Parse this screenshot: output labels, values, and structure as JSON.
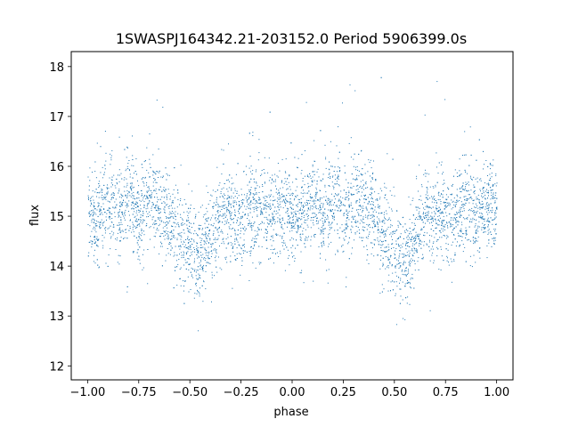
{
  "chart_data": {
    "type": "scatter",
    "title": "1SWASPJ164342.21-203152.0 Period 5906399.0s",
    "xlabel": "phase",
    "ylabel": "flux",
    "xlim": [
      -1.08,
      1.08
    ],
    "ylim": [
      11.72,
      18.3
    ],
    "xticks": [
      -1.0,
      -0.75,
      -0.5,
      -0.25,
      0.0,
      0.25,
      0.5,
      0.75,
      1.0
    ],
    "xtick_labels": [
      "−1.00",
      "−0.75",
      "−0.50",
      "−0.25",
      "0.00",
      "0.25",
      "0.50",
      "0.75",
      "1.00"
    ],
    "yticks": [
      12,
      13,
      14,
      15,
      16,
      17,
      18
    ],
    "ytick_labels": [
      "12",
      "13",
      "14",
      "15",
      "16",
      "17",
      "18"
    ],
    "grid": false,
    "marker_color": "#1f77b4",
    "series": [
      {
        "phase_profile": [
          {
            "x": -1.0,
            "y": 15.1
          },
          {
            "x": -0.95,
            "y": 15.0
          },
          {
            "x": -0.9,
            "y": 15.3
          },
          {
            "x": -0.85,
            "y": 15.0
          },
          {
            "x": -0.8,
            "y": 15.4
          },
          {
            "x": -0.75,
            "y": 15.0
          },
          {
            "x": -0.7,
            "y": 15.4
          },
          {
            "x": -0.65,
            "y": 15.2
          },
          {
            "x": -0.6,
            "y": 15.0
          },
          {
            "x": -0.55,
            "y": 14.6
          },
          {
            "x": -0.5,
            "y": 14.4
          },
          {
            "x": -0.45,
            "y": 14.1
          },
          {
            "x": -0.4,
            "y": 14.6
          },
          {
            "x": -0.35,
            "y": 15.1
          },
          {
            "x": -0.3,
            "y": 15.0
          },
          {
            "x": -0.25,
            "y": 14.9
          },
          {
            "x": -0.2,
            "y": 15.2
          },
          {
            "x": -0.15,
            "y": 15.1
          },
          {
            "x": -0.1,
            "y": 15.0
          },
          {
            "x": -0.05,
            "y": 15.2
          },
          {
            "x": 0.0,
            "y": 15.1
          },
          {
            "x": 0.05,
            "y": 15.0
          },
          {
            "x": 0.1,
            "y": 15.3
          },
          {
            "x": 0.15,
            "y": 15.0
          },
          {
            "x": 0.2,
            "y": 15.4
          },
          {
            "x": 0.25,
            "y": 15.0
          },
          {
            "x": 0.3,
            "y": 15.4
          },
          {
            "x": 0.35,
            "y": 15.2
          },
          {
            "x": 0.4,
            "y": 15.0
          },
          {
            "x": 0.45,
            "y": 14.6
          },
          {
            "x": 0.5,
            "y": 14.4
          },
          {
            "x": 0.55,
            "y": 14.1
          },
          {
            "x": 0.6,
            "y": 14.6
          },
          {
            "x": 0.65,
            "y": 15.1
          },
          {
            "x": 0.7,
            "y": 15.0
          },
          {
            "x": 0.75,
            "y": 14.9
          },
          {
            "x": 0.8,
            "y": 15.2
          },
          {
            "x": 0.85,
            "y": 15.1
          },
          {
            "x": 0.9,
            "y": 15.0
          },
          {
            "x": 0.95,
            "y": 15.2
          },
          {
            "x": 1.0,
            "y": 15.1
          }
        ],
        "scatter_sigma": 0.45,
        "point_count": 5000
      }
    ]
  }
}
